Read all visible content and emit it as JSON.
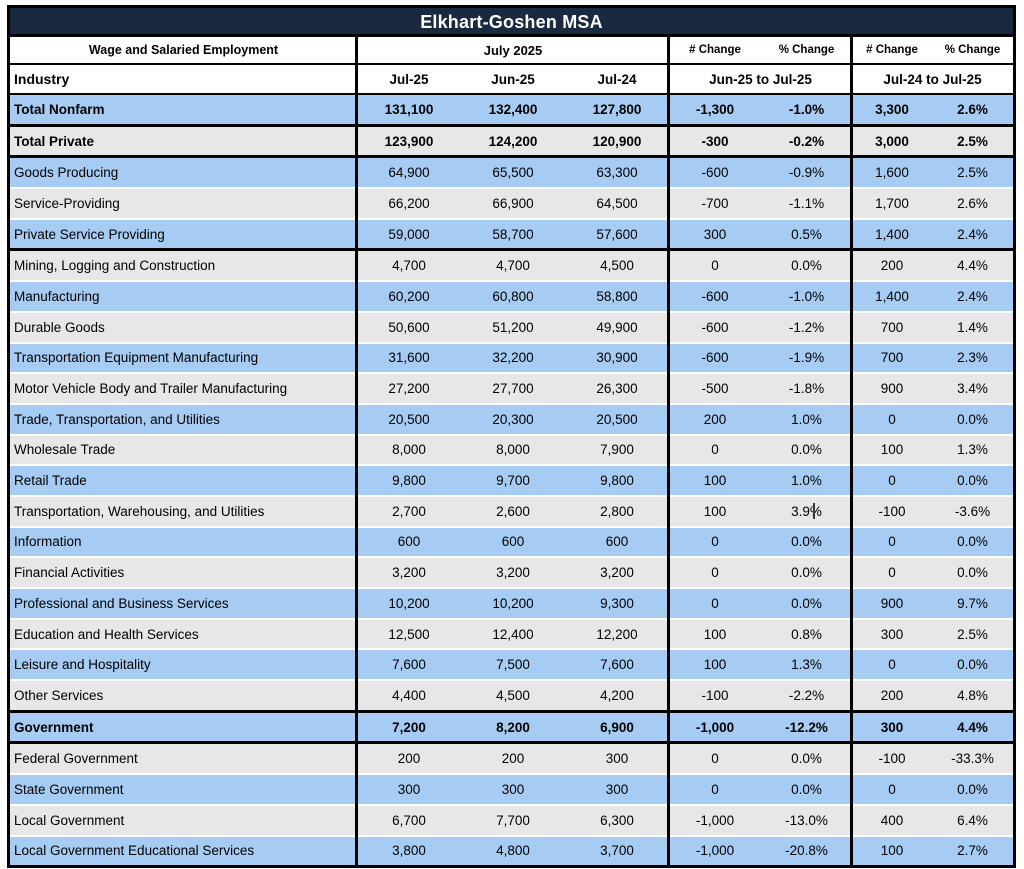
{
  "title": "Elkhart-Goshen MSA",
  "header": {
    "col1": "Wage and Salaried Employment",
    "period": "July 2025",
    "industry": "Industry",
    "months": [
      "Jul-25",
      "Jun-25",
      "Jul-24"
    ],
    "change_groups": [
      {
        "num": "# Change",
        "pct": "% Change",
        "range": "Jun-25 to Jul-25"
      },
      {
        "num": "# Change",
        "pct": "% Change",
        "range": "Jul-24 to Jul-25"
      }
    ]
  },
  "colors": {
    "title_bg": "#182940",
    "row_blue": "#A6CCF4",
    "row_gray": "#E7E7E7",
    "border": "#000000"
  },
  "group_sizes": [
    1,
    1,
    3,
    15,
    1,
    4
  ],
  "cursor_artifact_row": 13,
  "rows": [
    {
      "label": "Total Nonfarm",
      "bold": true,
      "values": [
        "131,100",
        "132,400",
        "127,800",
        "-1,300",
        "-1.0%",
        "3,300",
        "2.6%"
      ]
    },
    {
      "label": "Total Private",
      "bold": true,
      "values": [
        "123,900",
        "124,200",
        "120,900",
        "-300",
        "-0.2%",
        "3,000",
        "2.5%"
      ]
    },
    {
      "label": "Goods Producing",
      "bold": false,
      "values": [
        "64,900",
        "65,500",
        "63,300",
        "-600",
        "-0.9%",
        "1,600",
        "2.5%"
      ]
    },
    {
      "label": "Service-Providing",
      "bold": false,
      "values": [
        "66,200",
        "66,900",
        "64,500",
        "-700",
        "-1.1%",
        "1,700",
        "2.6%"
      ]
    },
    {
      "label": "Private Service Providing",
      "bold": false,
      "values": [
        "59,000",
        "58,700",
        "57,600",
        "300",
        "0.5%",
        "1,400",
        "2.4%"
      ]
    },
    {
      "label": "Mining, Logging and Construction",
      "bold": false,
      "values": [
        "4,700",
        "4,700",
        "4,500",
        "0",
        "0.0%",
        "200",
        "4.4%"
      ]
    },
    {
      "label": "Manufacturing",
      "bold": false,
      "values": [
        "60,200",
        "60,800",
        "58,800",
        "-600",
        "-1.0%",
        "1,400",
        "2.4%"
      ]
    },
    {
      "label": "Durable Goods",
      "bold": false,
      "values": [
        "50,600",
        "51,200",
        "49,900",
        "-600",
        "-1.2%",
        "700",
        "1.4%"
      ]
    },
    {
      "label": "Transportation Equipment Manufacturing",
      "bold": false,
      "values": [
        "31,600",
        "32,200",
        "30,900",
        "-600",
        "-1.9%",
        "700",
        "2.3%"
      ]
    },
    {
      "label": "Motor Vehicle Body and Trailer Manufacturing",
      "bold": false,
      "values": [
        "27,200",
        "27,700",
        "26,300",
        "-500",
        "-1.8%",
        "900",
        "3.4%"
      ]
    },
    {
      "label": "Trade, Transportation, and Utilities",
      "bold": false,
      "values": [
        "20,500",
        "20,300",
        "20,500",
        "200",
        "1.0%",
        "0",
        "0.0%"
      ]
    },
    {
      "label": "Wholesale Trade",
      "bold": false,
      "values": [
        "8,000",
        "8,000",
        "7,900",
        "0",
        "0.0%",
        "100",
        "1.3%"
      ]
    },
    {
      "label": "Retail Trade",
      "bold": false,
      "values": [
        "9,800",
        "9,700",
        "9,800",
        "100",
        "1.0%",
        "0",
        "0.0%"
      ]
    },
    {
      "label": "Transportation, Warehousing, and Utilities",
      "bold": false,
      "values": [
        "2,700",
        "2,600",
        "2,800",
        "100",
        "3.9%",
        "-100",
        "-3.6%"
      ]
    },
    {
      "label": "Information",
      "bold": false,
      "values": [
        "600",
        "600",
        "600",
        "0",
        "0.0%",
        "0",
        "0.0%"
      ]
    },
    {
      "label": "Financial Activities",
      "bold": false,
      "values": [
        "3,200",
        "3,200",
        "3,200",
        "0",
        "0.0%",
        "0",
        "0.0%"
      ]
    },
    {
      "label": "Professional and Business Services",
      "bold": false,
      "values": [
        "10,200",
        "10,200",
        "9,300",
        "0",
        "0.0%",
        "900",
        "9.7%"
      ]
    },
    {
      "label": "Education and Health Services",
      "bold": false,
      "values": [
        "12,500",
        "12,400",
        "12,200",
        "100",
        "0.8%",
        "300",
        "2.5%"
      ]
    },
    {
      "label": "Leisure and Hospitality",
      "bold": false,
      "values": [
        "7,600",
        "7,500",
        "7,600",
        "100",
        "1.3%",
        "0",
        "0.0%"
      ]
    },
    {
      "label": "Other Services",
      "bold": false,
      "values": [
        "4,400",
        "4,500",
        "4,200",
        "-100",
        "-2.2%",
        "200",
        "4.8%"
      ]
    },
    {
      "label": "Government",
      "bold": true,
      "values": [
        "7,200",
        "8,200",
        "6,900",
        "-1,000",
        "-12.2%",
        "300",
        "4.4%"
      ]
    },
    {
      "label": "Federal Government",
      "bold": false,
      "values": [
        "200",
        "200",
        "300",
        "0",
        "0.0%",
        "-100",
        "-33.3%"
      ]
    },
    {
      "label": "State Government",
      "bold": false,
      "values": [
        "300",
        "300",
        "300",
        "0",
        "0.0%",
        "0",
        "0.0%"
      ]
    },
    {
      "label": "Local Government",
      "bold": false,
      "values": [
        "6,700",
        "7,700",
        "6,300",
        "-1,000",
        "-13.0%",
        "400",
        "6.4%"
      ]
    },
    {
      "label": "Local Government Educational Services",
      "bold": false,
      "values": [
        "3,800",
        "4,800",
        "3,700",
        "-1,000",
        "-20.8%",
        "100",
        "2.7%"
      ]
    }
  ]
}
